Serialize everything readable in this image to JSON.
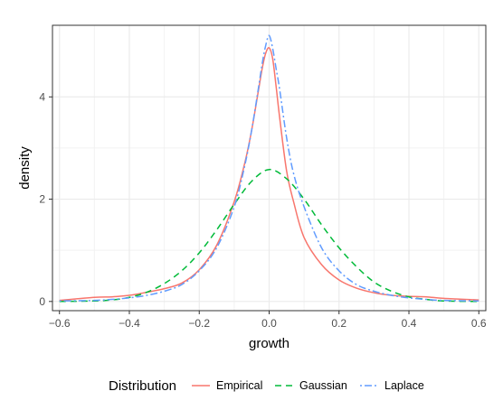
{
  "chart_data": {
    "type": "line",
    "xlabel": "growth",
    "ylabel": "density",
    "xlim": [
      -0.62,
      0.62
    ],
    "ylim": [
      -0.18,
      5.4
    ],
    "x_ticks": [
      -0.6,
      -0.4,
      -0.2,
      0.0,
      0.2,
      0.4,
      0.6
    ],
    "x_tick_labels": [
      "−0.6",
      "−0.4",
      "−0.2",
      "0.0",
      "0.2",
      "0.4",
      "0.6"
    ],
    "y_ticks": [
      0,
      2,
      4
    ],
    "y_tick_labels": [
      "0",
      "2",
      "4"
    ],
    "grid": true,
    "legend": {
      "title": "Distribution",
      "position": "bottom"
    },
    "series": [
      {
        "name": "Empirical",
        "color": "#F8766D",
        "dash": "solid",
        "x": [
          -0.6,
          -0.5,
          -0.45,
          -0.4,
          -0.35,
          -0.3,
          -0.25,
          -0.2,
          -0.15,
          -0.1,
          -0.07,
          -0.05,
          -0.03,
          -0.02,
          -0.01,
          0.0,
          0.01,
          0.02,
          0.03,
          0.05,
          0.07,
          0.1,
          0.15,
          0.2,
          0.25,
          0.3,
          0.35,
          0.4,
          0.45,
          0.5,
          0.6
        ],
        "y": [
          0.02,
          0.08,
          0.09,
          0.12,
          0.18,
          0.25,
          0.36,
          0.62,
          1.1,
          1.95,
          2.7,
          3.35,
          4.15,
          4.55,
          4.85,
          4.96,
          4.75,
          4.2,
          3.6,
          2.55,
          1.95,
          1.25,
          0.72,
          0.42,
          0.26,
          0.17,
          0.12,
          0.1,
          0.09,
          0.06,
          0.03
        ]
      },
      {
        "name": "Gaussian",
        "color": "#00BA38",
        "dash": "dashed",
        "x": [
          -0.6,
          -0.5,
          -0.45,
          -0.4,
          -0.35,
          -0.3,
          -0.25,
          -0.2,
          -0.15,
          -0.1,
          -0.05,
          0.0,
          0.05,
          0.1,
          0.15,
          0.2,
          0.25,
          0.3,
          0.35,
          0.4,
          0.45,
          0.5,
          0.6
        ],
        "y": [
          0.0,
          0.01,
          0.03,
          0.08,
          0.18,
          0.35,
          0.6,
          0.95,
          1.4,
          1.9,
          2.35,
          2.58,
          2.4,
          2.0,
          1.5,
          1.05,
          0.68,
          0.38,
          0.2,
          0.09,
          0.04,
          0.01,
          0.0
        ]
      },
      {
        "name": "Laplace",
        "color": "#619CFF",
        "dash": "dotdash",
        "x": [
          -0.6,
          -0.5,
          -0.45,
          -0.4,
          -0.35,
          -0.3,
          -0.25,
          -0.2,
          -0.15,
          -0.1,
          -0.07,
          -0.05,
          -0.03,
          -0.02,
          -0.01,
          0.0,
          0.01,
          0.02,
          0.03,
          0.05,
          0.07,
          0.1,
          0.15,
          0.2,
          0.25,
          0.3,
          0.35,
          0.4,
          0.45,
          0.5,
          0.6
        ],
        "y": [
          0.01,
          0.02,
          0.04,
          0.07,
          0.12,
          0.2,
          0.33,
          0.6,
          1.05,
          1.85,
          2.65,
          3.35,
          4.2,
          4.65,
          5.0,
          5.2,
          4.95,
          4.55,
          4.15,
          3.2,
          2.5,
          1.85,
          1.05,
          0.6,
          0.33,
          0.2,
          0.12,
          0.07,
          0.04,
          0.02,
          0.01
        ]
      }
    ]
  }
}
